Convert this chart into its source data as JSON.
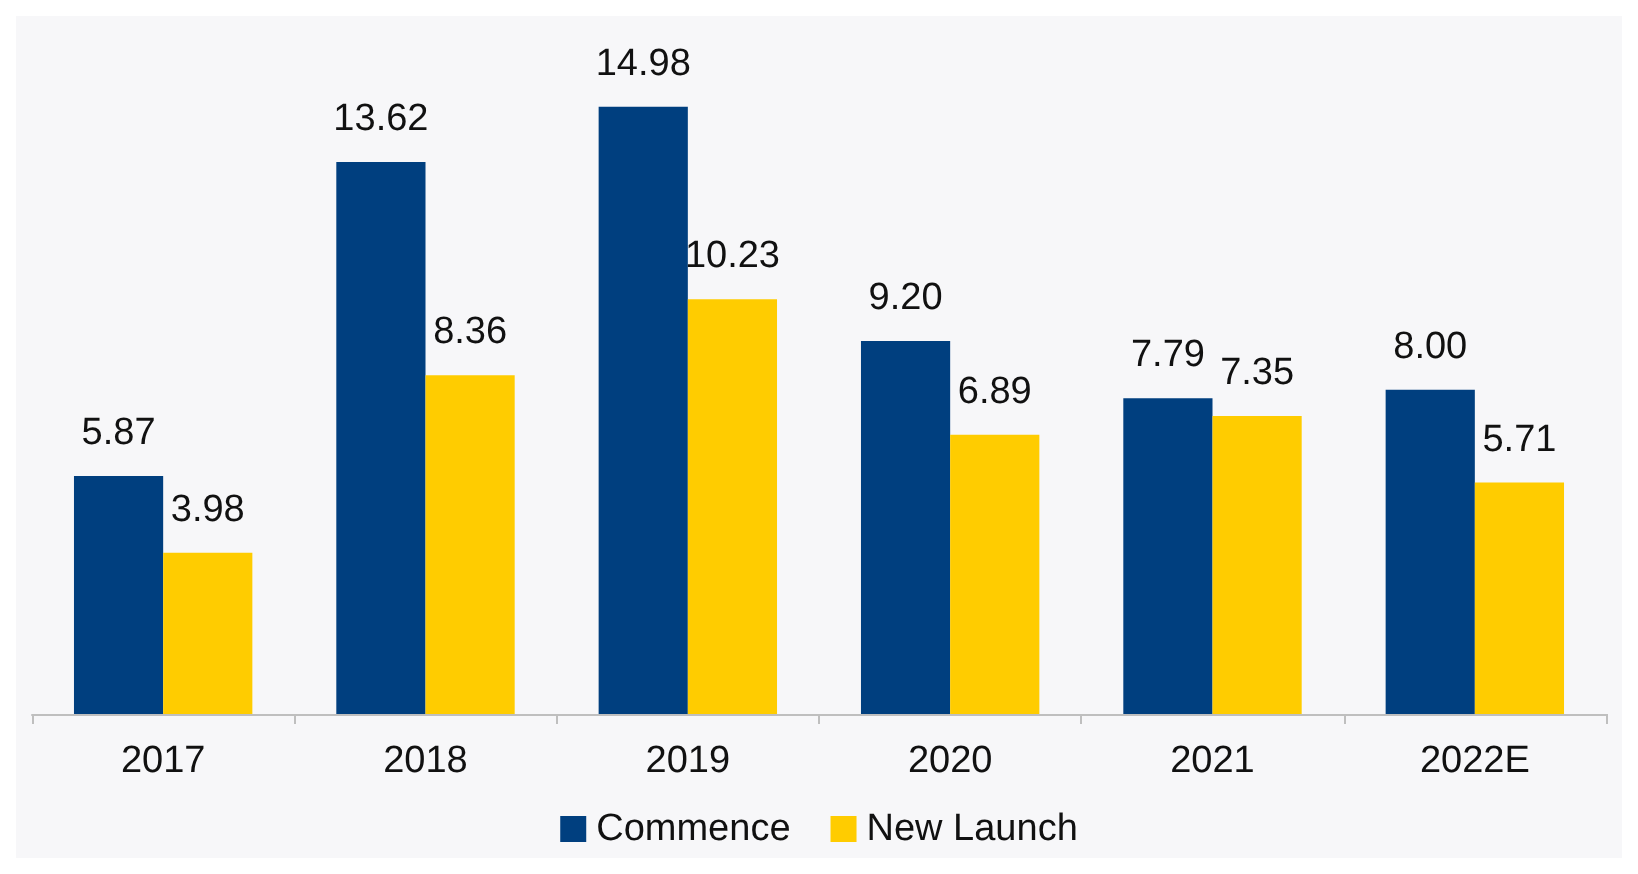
{
  "chart_data": {
    "type": "bar",
    "categories": [
      "2017",
      "2018",
      "2019",
      "2020",
      "2021",
      "2022E"
    ],
    "series": [
      {
        "name": "Commence",
        "color": "#003f7f",
        "values": [
          5.87,
          13.62,
          14.98,
          9.2,
          7.79,
          8.0
        ],
        "value_labels": [
          "5.87",
          "13.62",
          "14.98",
          "9.20",
          "7.79",
          "8.00"
        ]
      },
      {
        "name": "New Launch",
        "color": "#ffcc00",
        "values": [
          3.98,
          8.36,
          10.23,
          6.89,
          7.35,
          5.71
        ],
        "value_labels": [
          "3.98",
          "8.36",
          "10.23",
          "6.89",
          "7.35",
          "5.71"
        ]
      }
    ],
    "legend": "bottom"
  }
}
